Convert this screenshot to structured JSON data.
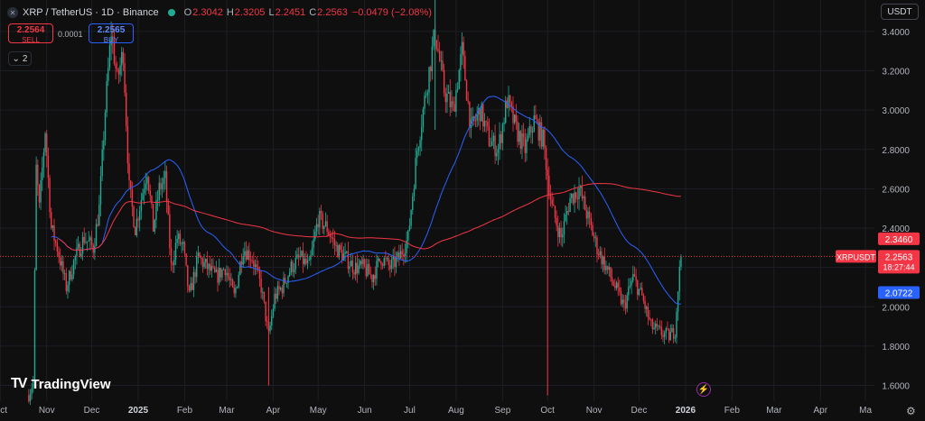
{
  "header": {
    "symbol_icon": "xrp-icon",
    "title": "XRP / TetherUS · 1D · Binance",
    "status_color": "#22ab94",
    "ohlc": [
      {
        "key": "O",
        "value": "2.3042"
      },
      {
        "key": "H",
        "value": "2.3205"
      },
      {
        "key": "L",
        "value": "2.2451"
      },
      {
        "key": "C",
        "value": "2.2563"
      }
    ],
    "change": "−0.0479 (−2.08%)"
  },
  "trade": {
    "sell_price": "2.2564",
    "sell_label": "SELL",
    "spread": "0.0001",
    "buy_price": "2.2565",
    "buy_label": "BUY"
  },
  "indicators_toggle": "2",
  "currency": "USDT",
  "logo_text": "TradingView",
  "colors": {
    "up": "#22ab94",
    "down": "#f23645",
    "ma_fast": "#2962ff",
    "ma_slow": "#f23645"
  },
  "chart_data": {
    "type": "candlestick",
    "symbol": "XRPUSDT",
    "interval": "1D",
    "ylim": [
      1.52,
      3.56
    ],
    "y_ticks": [
      "3.4000",
      "3.2000",
      "3.0000",
      "2.8000",
      "2.6000",
      "2.4000",
      "2.2000",
      "2.0000",
      "1.8000",
      "1.6000"
    ],
    "x_ticks": [
      "Oct",
      "Nov",
      "Dec",
      "2025",
      "Feb",
      "Mar",
      "Apr",
      "May",
      "Jun",
      "Jul",
      "Aug",
      "Sep",
      "Oct",
      "Nov",
      "Dec",
      "2026",
      "Feb",
      "Mar",
      "Apr",
      "Ma"
    ],
    "x_tick_positions_days": [
      -22,
      9,
      39,
      70,
      101,
      129,
      160,
      190,
      221,
      251,
      282,
      313,
      343,
      374,
      404,
      435,
      466,
      494,
      525,
      555
    ],
    "last_candle_day": 432,
    "price_path": [
      [
        -3,
        1.55
      ],
      [
        0,
        1.62
      ],
      [
        2,
        2.7
      ],
      [
        4,
        2.5
      ],
      [
        8,
        2.9
      ],
      [
        12,
        2.4
      ],
      [
        16,
        2.3
      ],
      [
        22,
        2.1
      ],
      [
        28,
        2.25
      ],
      [
        34,
        2.35
      ],
      [
        40,
        2.3
      ],
      [
        44,
        2.5
      ],
      [
        48,
        3.0
      ],
      [
        52,
        3.4
      ],
      [
        56,
        3.15
      ],
      [
        60,
        3.3
      ],
      [
        64,
        2.6
      ],
      [
        68,
        2.4
      ],
      [
        72,
        2.55
      ],
      [
        76,
        2.7
      ],
      [
        80,
        2.4
      ],
      [
        84,
        2.6
      ],
      [
        88,
        2.65
      ],
      [
        92,
        2.2
      ],
      [
        96,
        2.35
      ],
      [
        100,
        2.3
      ],
      [
        104,
        2.05
      ],
      [
        110,
        2.25
      ],
      [
        116,
        2.2
      ],
      [
        122,
        2.15
      ],
      [
        128,
        2.2
      ],
      [
        134,
        2.05
      ],
      [
        140,
        2.3
      ],
      [
        146,
        2.25
      ],
      [
        152,
        2.1
      ],
      [
        157,
        1.85
      ],
      [
        161,
        2.05
      ],
      [
        166,
        2.1
      ],
      [
        172,
        2.2
      ],
      [
        178,
        2.25
      ],
      [
        184,
        2.2
      ],
      [
        190,
        2.45
      ],
      [
        196,
        2.4
      ],
      [
        202,
        2.3
      ],
      [
        208,
        2.25
      ],
      [
        214,
        2.2
      ],
      [
        220,
        2.2
      ],
      [
        226,
        2.15
      ],
      [
        232,
        2.25
      ],
      [
        238,
        2.2
      ],
      [
        244,
        2.25
      ],
      [
        250,
        2.35
      ],
      [
        256,
        2.8
      ],
      [
        262,
        3.1
      ],
      [
        268,
        3.4
      ],
      [
        274,
        3.1
      ],
      [
        280,
        3.0
      ],
      [
        286,
        3.3
      ],
      [
        292,
        2.9
      ],
      [
        298,
        3.0
      ],
      [
        304,
        2.85
      ],
      [
        310,
        2.8
      ],
      [
        316,
        3.05
      ],
      [
        322,
        2.9
      ],
      [
        328,
        2.8
      ],
      [
        334,
        2.95
      ],
      [
        340,
        2.85
      ],
      [
        346,
        2.5
      ],
      [
        352,
        2.35
      ],
      [
        358,
        2.55
      ],
      [
        364,
        2.6
      ],
      [
        370,
        2.45
      ],
      [
        376,
        2.3
      ],
      [
        382,
        2.2
      ],
      [
        388,
        2.1
      ],
      [
        394,
        2.0
      ],
      [
        400,
        2.15
      ],
      [
        406,
        2.05
      ],
      [
        412,
        1.9
      ],
      [
        418,
        1.87
      ],
      [
        424,
        1.85
      ],
      [
        428,
        1.88
      ],
      [
        430,
        2.1
      ],
      [
        432,
        2.256
      ]
    ],
    "moving_averages": [
      {
        "period": 50,
        "color": "#2962ff",
        "last_value": "2.0722"
      },
      {
        "period": 200,
        "color": "#f23645",
        "last_value": "2.3460"
      }
    ],
    "last_price": "2.2563",
    "last_label": "XRPUSDT",
    "countdown": "18:27:44"
  }
}
